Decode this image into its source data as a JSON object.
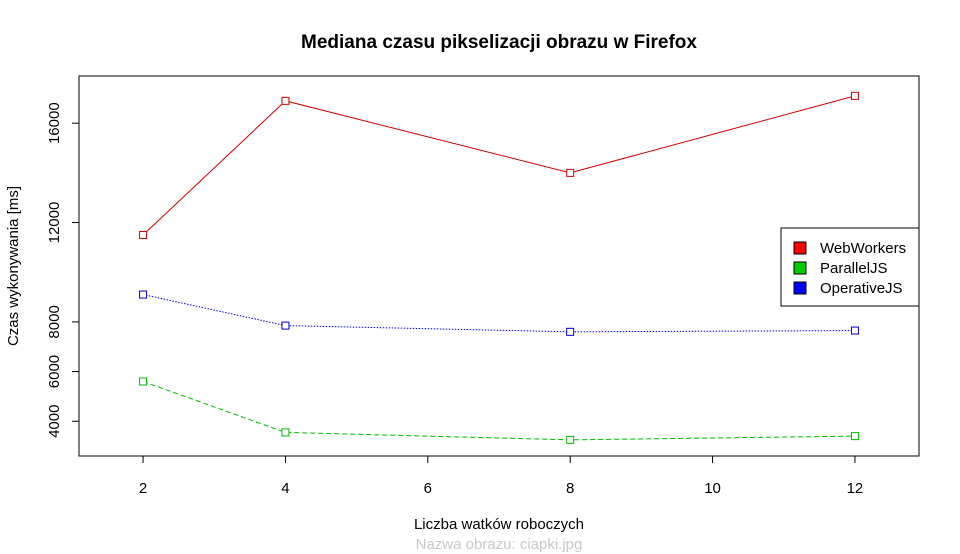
{
  "chart_data": {
    "type": "line",
    "title": "Mediana czasu pikselizacji obrazu w Firefox",
    "xlabel": "Liczba watków roboczych",
    "ylabel": "Czas wykonywania [ms]",
    "subtitle": "Nazwa obrazu: ciapki.jpg",
    "x": [
      2,
      4,
      8,
      12
    ],
    "xlim": [
      1.1,
      12.9
    ],
    "ylim": [
      2600,
      17900
    ],
    "xticks": [
      2,
      4,
      6,
      8,
      10,
      12
    ],
    "yticks": [
      4000,
      6000,
      8000,
      12000,
      16000
    ],
    "grid": false,
    "legend_position": "right",
    "series": [
      {
        "name": "WebWorkers",
        "values": [
          11500,
          16900,
          14000,
          17100
        ],
        "color": "#cc0000",
        "line_style": "solid",
        "legend_color": "#ff0000"
      },
      {
        "name": "ParallelJS",
        "values": [
          5600,
          3550,
          3250,
          3400
        ],
        "color": "#00bb00",
        "line_style": "dashed",
        "legend_color": "#00cc00"
      },
      {
        "name": "OperativeJS",
        "values": [
          9100,
          7850,
          7600,
          7650
        ],
        "color": "#0000cc",
        "line_style": "dotted",
        "legend_color": "#0000ff"
      }
    ]
  }
}
